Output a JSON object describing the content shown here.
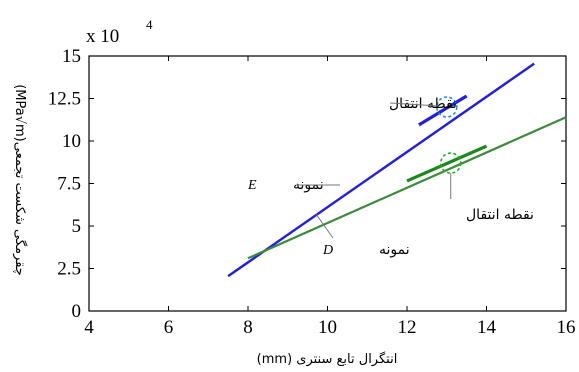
{
  "chart_data": {
    "type": "line",
    "xlabel": "انتگرال تابع سنتری (mm)",
    "ylabel": "چقرمگی شکست تجمعی(MPa√m)",
    "xlim": [
      4,
      16
    ],
    "ylim": [
      0,
      15
    ],
    "x_ticks": [
      "4",
      "6",
      "8",
      "10",
      "12",
      "14",
      "16"
    ],
    "y_ticks": [
      "0",
      "2.5",
      "5",
      "7.5",
      "10",
      "12.5",
      "15"
    ],
    "y_multiplier": "x 10",
    "y_multiplier_exp": "4",
    "grid": false,
    "series": [
      {
        "name": "نمونه E",
        "color": "#1f1fe0",
        "x": [
          7.5,
          15.2
        ],
        "y": [
          2.05,
          14.55
        ]
      },
      {
        "name": "نمونه D",
        "color": "#3d8a3d",
        "x": [
          8.0,
          16.0
        ],
        "y": [
          3.1,
          11.4
        ]
      }
    ],
    "tangents": [
      {
        "color": "#1f1fe0",
        "x": [
          12.3,
          13.5
        ],
        "y": [
          10.95,
          12.65
        ]
      },
      {
        "color": "#1a8a1a",
        "x": [
          12.0,
          14.0
        ],
        "y": [
          7.65,
          9.7
        ]
      }
    ],
    "annotations": {
      "e_label_text": "نمونه",
      "e_label_letter": "E",
      "d_label_text": "نمونه",
      "d_label_letter": "D",
      "transition_top": "نقطه انتقال",
      "transition_bottom": "نقطه انتقال"
    },
    "markers": [
      {
        "color": "#1f8fe0",
        "x": 13.0,
        "y": 12.0
      },
      {
        "color": "#22b022",
        "x": 13.1,
        "y": 8.7
      }
    ]
  }
}
